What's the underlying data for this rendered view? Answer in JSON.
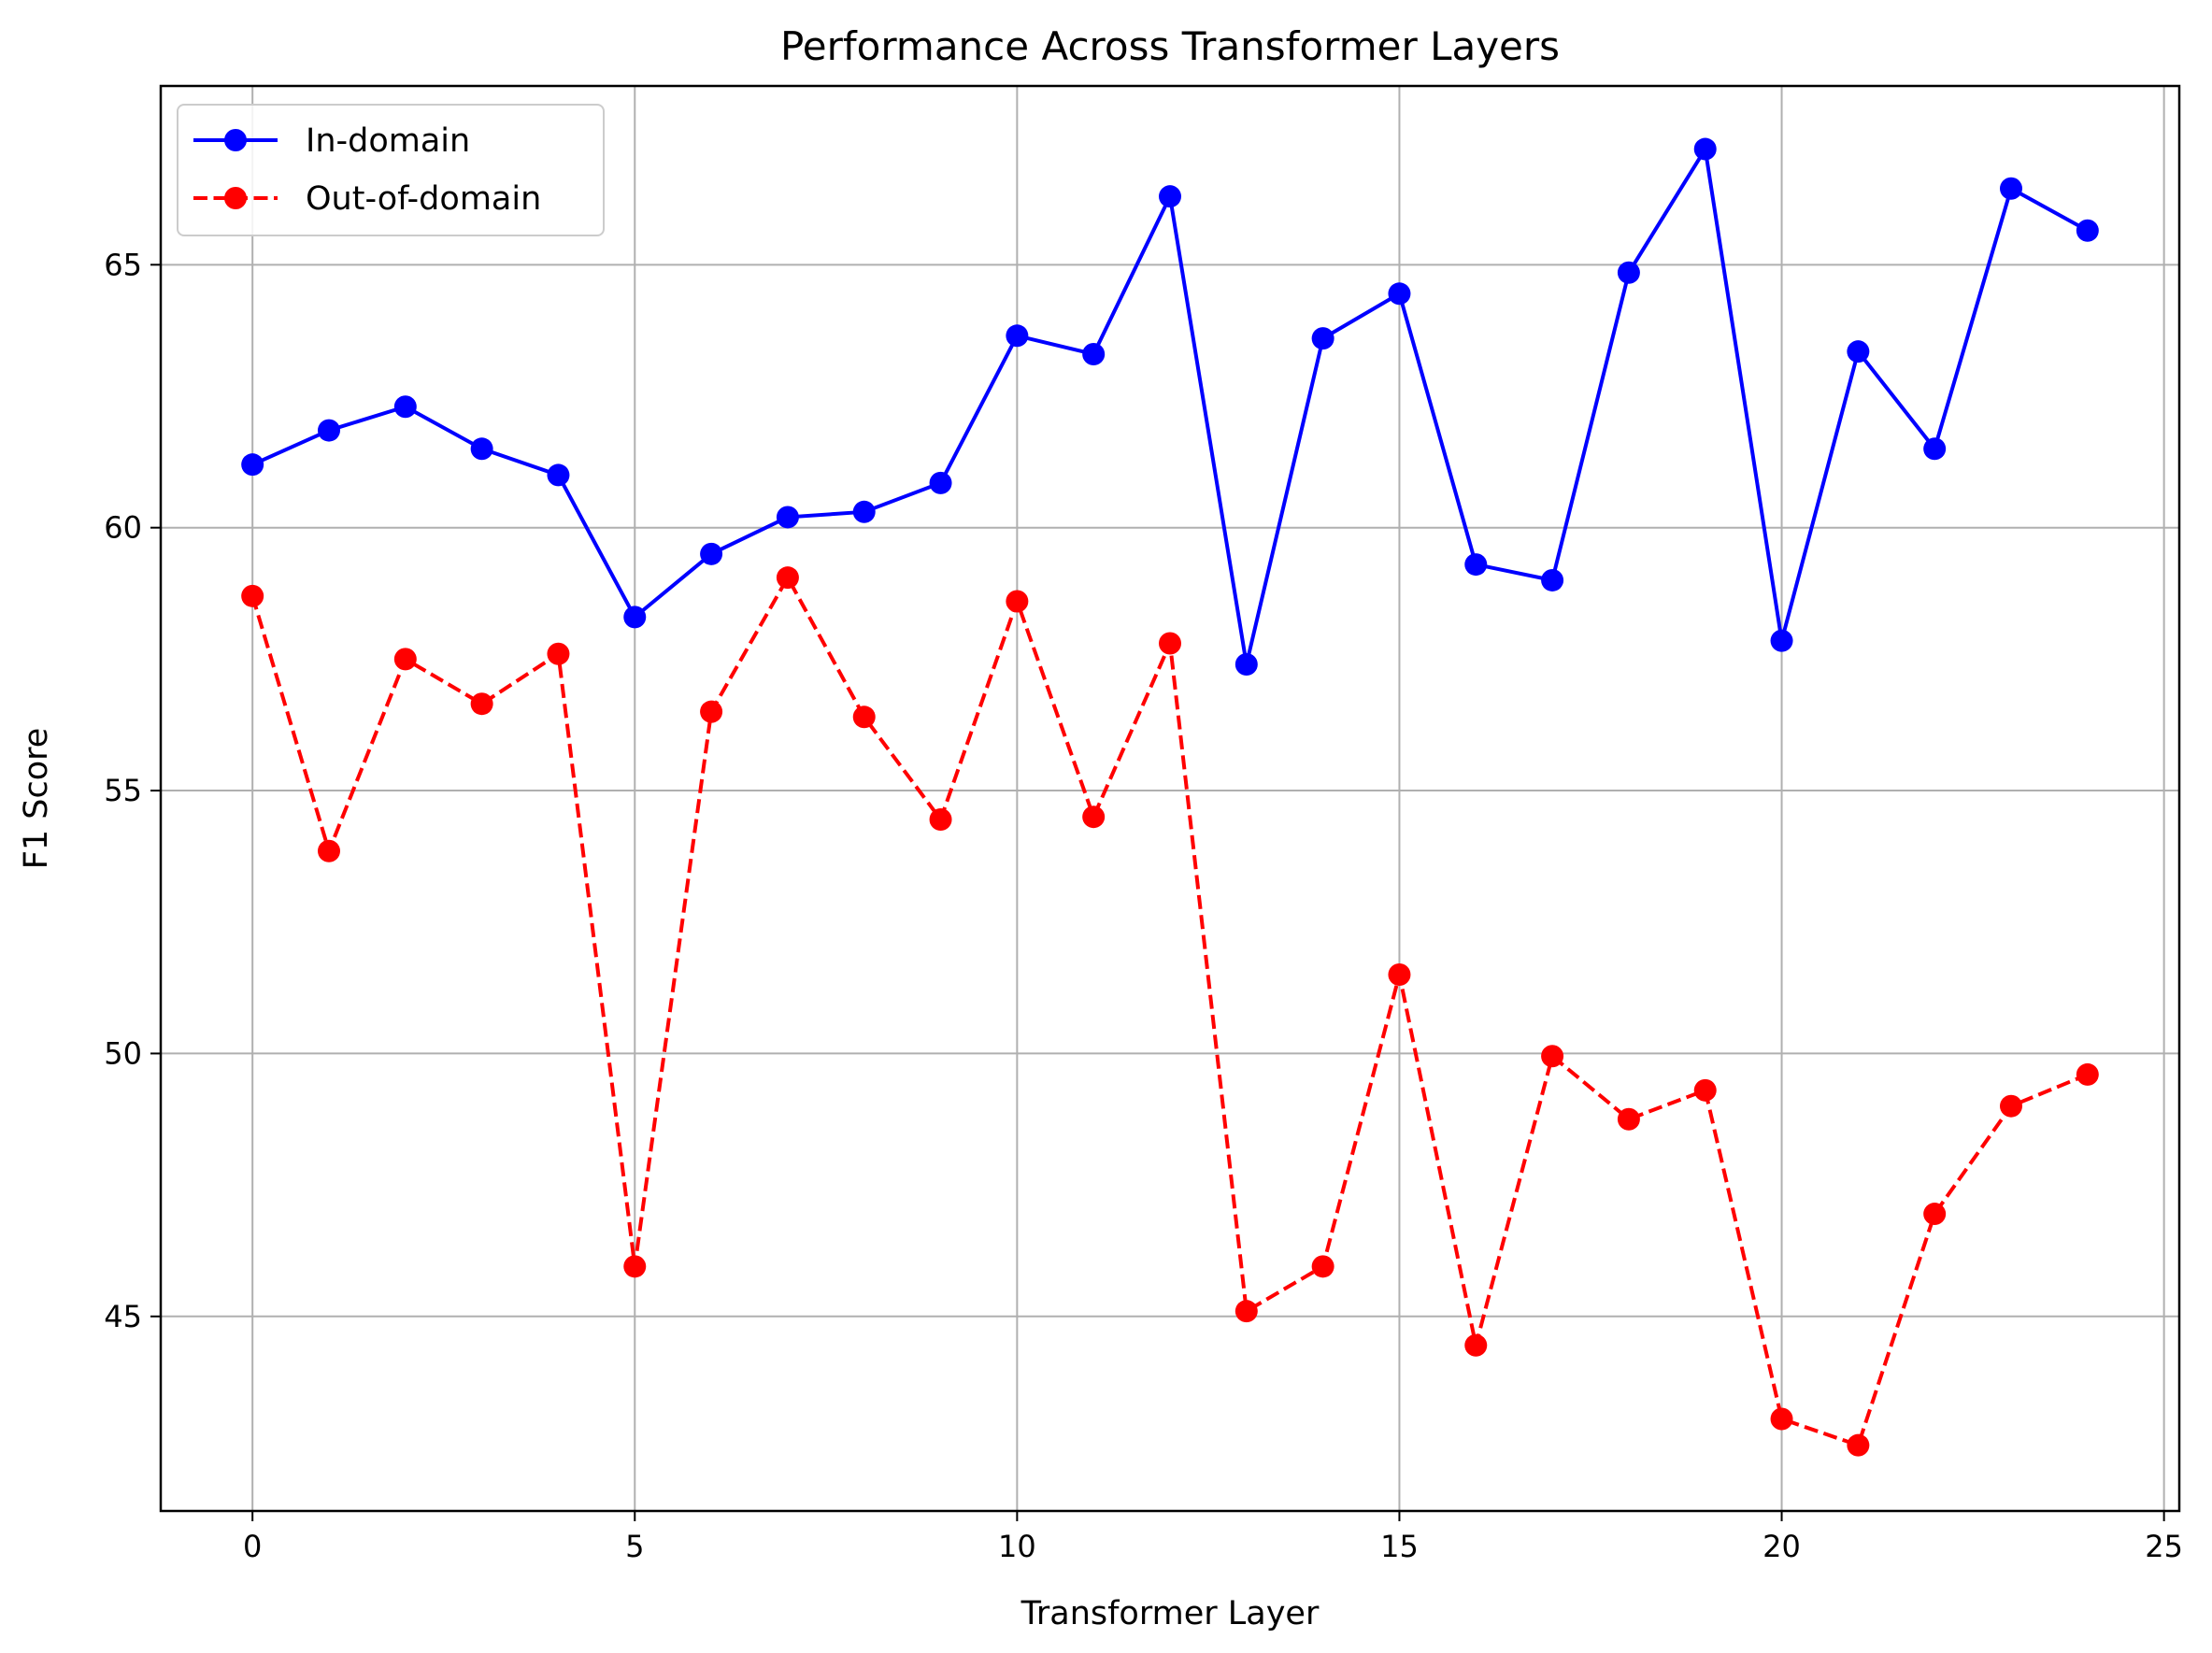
{
  "chart_data": {
    "type": "line",
    "title": "Performance Across Transformer Layers",
    "xlabel": "Transformer Layer",
    "ylabel": "F1 Score",
    "xlim": [
      -1.2,
      25.2
    ],
    "ylim": [
      41.3,
      68.4
    ],
    "xticks": [
      0,
      5,
      10,
      15,
      20,
      25
    ],
    "yticks": [
      45,
      50,
      55,
      60,
      65
    ],
    "grid": true,
    "legend_position": "top-left",
    "x": [
      0,
      1,
      2,
      3,
      4,
      5,
      6,
      7,
      8,
      9,
      10,
      11,
      12,
      13,
      14,
      15,
      16,
      17,
      18,
      19,
      20,
      21,
      22,
      23,
      24
    ],
    "series": [
      {
        "name": "In-domain",
        "color": "#0000ff",
        "line_style": "solid",
        "marker": "circle",
        "values": [
          61.2,
          61.85,
          62.3,
          61.5,
          61.0,
          58.3,
          59.5,
          60.2,
          60.3,
          60.85,
          63.65,
          63.3,
          66.3,
          57.4,
          63.6,
          64.45,
          59.3,
          59.0,
          64.85,
          67.2,
          57.85,
          63.35,
          61.5,
          66.45,
          65.65
        ]
      },
      {
        "name": "Out-of-domain",
        "color": "#ff0000",
        "line_style": "dashed",
        "marker": "circle",
        "values": [
          58.7,
          53.85,
          57.5,
          56.65,
          57.6,
          45.95,
          56.5,
          59.05,
          56.4,
          54.45,
          58.6,
          54.5,
          57.8,
          45.1,
          45.95,
          51.5,
          44.45,
          49.95,
          48.75,
          49.3,
          43.05,
          42.55,
          46.95,
          49.0,
          49.6
        ]
      }
    ]
  }
}
